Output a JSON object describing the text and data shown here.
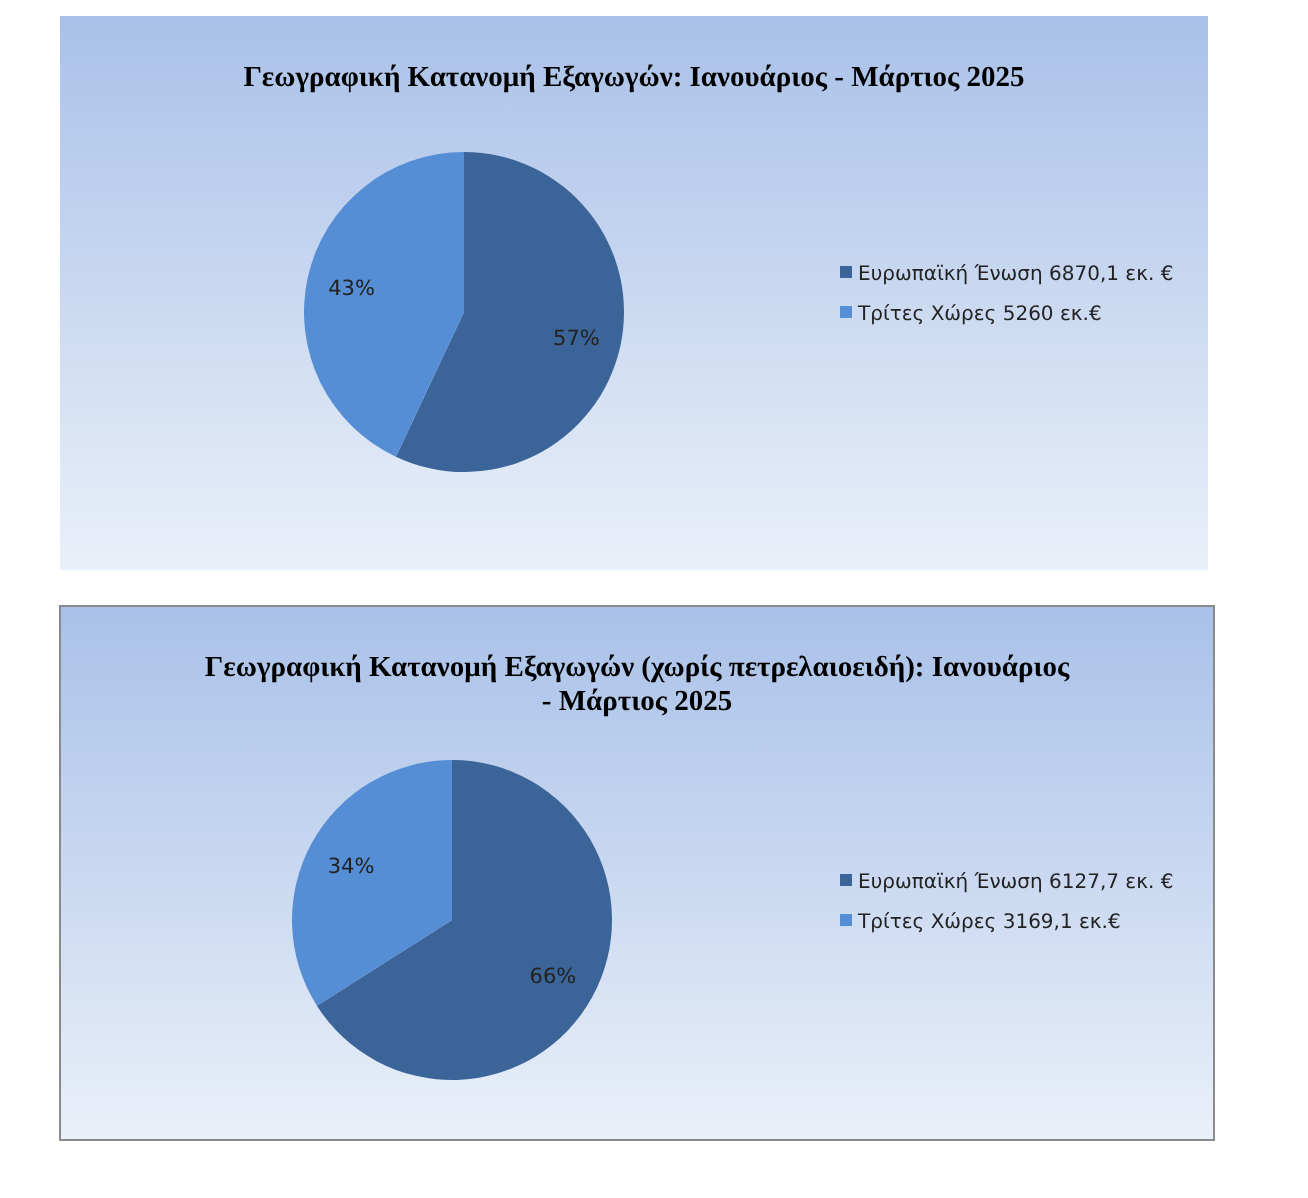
{
  "chart_data": [
    {
      "type": "pie",
      "title": "Γεωγραφική Κατανομή Εξαγωγών: Ιανουάριος - Μάρτιος 2025",
      "categories": [
        "Ευρωπαϊκή Ένωση 6870,1 εκ. €",
        "Τρίτες Χώρες 5260 εκ.€"
      ],
      "values": [
        57,
        43
      ],
      "colors": [
        "#3b6499",
        "#558ed5"
      ],
      "value_labels": [
        "57%",
        "43%"
      ],
      "legend": "right"
    },
    {
      "type": "pie",
      "title": "Γεωγραφική Κατανομή Εξαγωγών (χωρίς πετρελαιοειδή): Ιανουάριος - Μάρτιος 2025",
      "categories": [
        "Ευρωπαϊκή Ένωση 6127,7 εκ. €",
        "Τρίτες Χώρες 3169,1 εκ.€"
      ],
      "values": [
        66,
        34
      ],
      "colors": [
        "#3b6499",
        "#558ed5"
      ],
      "value_labels": [
        "66%",
        "34%"
      ],
      "legend": "right"
    }
  ]
}
